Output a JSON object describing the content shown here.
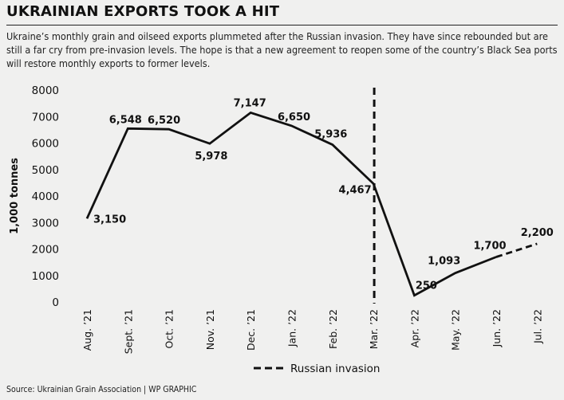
{
  "header": {
    "title": "UKRAINIAN EXPORTS TOOK A HIT",
    "subtitle": "Ukraine’s monthly grain and oilseed exports plummeted after the Russian invasion. They have since rebounded but are still a far cry from pre-invasion levels. The hope is that a new agreement to reopen some of the country’s Black Sea ports will restore monthly exports to former levels."
  },
  "footer": {
    "source": "Source: Ukrainian Grain Association  |  WP GRAPHIC"
  },
  "chart_data": {
    "type": "line",
    "title": "UKRAINIAN EXPORTS TOOK A HIT",
    "ylabel": "1,000 tonnes",
    "xlabel": "",
    "ylim": [
      0,
      8000
    ],
    "yticks": [
      0,
      1000,
      2000,
      3000,
      4000,
      5000,
      6000,
      7000,
      8000
    ],
    "grid": false,
    "categories": [
      "Aug. ’21",
      "Sept. ’21",
      "Oct. ’21",
      "Nov. ’21",
      "Dec. ’21",
      "Jan. ’22",
      "Feb. ’22",
      "Mar. ’22",
      "Apr. ’22",
      "May. ’22",
      "Jun. ’22",
      "Jul. ’22"
    ],
    "series": [
      {
        "values": [
          3150,
          6548,
          6520,
          5978,
          7147,
          6650,
          5936,
          4467,
          250,
          1093,
          1700,
          2200
        ],
        "labels": [
          "3,150",
          "6,548",
          "6,520",
          "5,978",
          "7,147",
          "6,650",
          "5,936",
          "4,467",
          "250",
          "1,093",
          "1,700",
          "2,200"
        ],
        "projected_from_index": 10,
        "color": "#111111"
      }
    ],
    "annotation": {
      "category": "Mar. ’22",
      "style": "dashed-vertical",
      "legend_label": "Russian invasion",
      "legend_placement": "bottom-center"
    }
  }
}
